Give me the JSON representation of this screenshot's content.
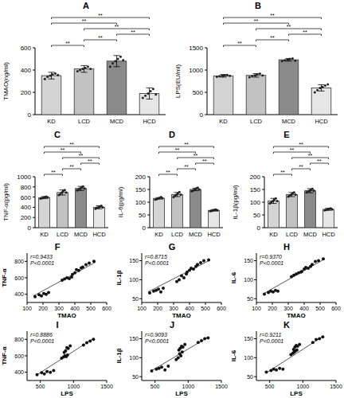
{
  "chart_data": [
    {
      "type": "bar",
      "title": "A",
      "y_label": "TMAO(ng/ml)",
      "categories": [
        "KD",
        "LCD",
        "MCD",
        "HCD"
      ],
      "values": [
        350,
        410,
        480,
        190
      ],
      "errors": [
        30,
        30,
        50,
        50
      ],
      "points": [
        [
          320,
          340,
          350,
          360,
          370,
          355
        ],
        [
          390,
          400,
          410,
          420,
          430,
          410
        ],
        [
          430,
          460,
          480,
          500,
          520,
          490
        ],
        [
          150,
          170,
          190,
          210,
          230,
          180
        ]
      ],
      "colors": [
        "#d4d4d4",
        "#c2c2c2",
        "#8a8a8a",
        "#e6e6e6"
      ],
      "ylim": [
        0,
        600
      ],
      "yticks": [
        0,
        200,
        400,
        600
      ],
      "comparisons": [
        {
          "groups": [
            0,
            1
          ],
          "label": "**"
        },
        {
          "groups": [
            1,
            2
          ],
          "label": "**"
        },
        {
          "groups": [
            2,
            3
          ],
          "label": "**"
        },
        {
          "groups": [
            1,
            3
          ],
          "label": "**"
        },
        {
          "groups": [
            0,
            2
          ],
          "label": "**"
        },
        {
          "groups": [
            0,
            3
          ],
          "label": "**"
        }
      ]
    },
    {
      "type": "bar",
      "title": "B",
      "y_label": "LPS(EU/ml)",
      "categories": [
        "KD",
        "LCD",
        "MCD",
        "HCD"
      ],
      "values": [
        870,
        880,
        1230,
        600
      ],
      "errors": [
        30,
        40,
        30,
        70
      ],
      "points": [
        [
          850,
          860,
          870,
          880,
          890,
          870
        ],
        [
          840,
          860,
          880,
          900,
          920,
          880
        ],
        [
          1200,
          1220,
          1230,
          1250,
          1260,
          1210
        ],
        [
          500,
          550,
          600,
          620,
          650,
          680
        ]
      ],
      "colors": [
        "#d4d4d4",
        "#c2c2c2",
        "#8a8a8a",
        "#e6e6e6"
      ],
      "ylim": [
        0,
        1500
      ],
      "yticks": [
        0,
        500,
        1000,
        1500
      ],
      "comparisons": [
        {
          "groups": [
            0,
            1
          ],
          "label": "**"
        },
        {
          "groups": [
            1,
            2
          ],
          "label": "**"
        },
        {
          "groups": [
            2,
            3
          ],
          "label": "**"
        },
        {
          "groups": [
            1,
            3
          ],
          "label": "**"
        },
        {
          "groups": [
            0,
            2
          ],
          "label": "**"
        },
        {
          "groups": [
            0,
            3
          ],
          "label": "**"
        }
      ]
    },
    {
      "type": "bar",
      "title": "C",
      "y_label": "TNF-α(pg/ml)",
      "categories": [
        "KD",
        "LCD",
        "MCD",
        "HCD"
      ],
      "values": [
        590,
        690,
        770,
        400
      ],
      "errors": [
        20,
        50,
        40,
        30
      ],
      "points": [
        [
          570,
          580,
          590,
          600,
          610,
          595
        ],
        [
          640,
          660,
          690,
          720,
          740,
          690
        ],
        [
          730,
          750,
          770,
          790,
          810,
          770
        ],
        [
          370,
          390,
          400,
          410,
          430,
          400
        ]
      ],
      "colors": [
        "#d4d4d4",
        "#c2c2c2",
        "#8a8a8a",
        "#e6e6e6"
      ],
      "ylim": [
        0,
        1000
      ],
      "yticks": [
        0,
        200,
        400,
        600,
        800,
        1000
      ],
      "comparisons": [
        {
          "groups": [
            0,
            1
          ],
          "label": "**"
        },
        {
          "groups": [
            1,
            2
          ],
          "label": "**"
        },
        {
          "groups": [
            2,
            3
          ],
          "label": "**"
        },
        {
          "groups": [
            1,
            3
          ],
          "label": "**"
        },
        {
          "groups": [
            0,
            2
          ],
          "label": "**"
        },
        {
          "groups": [
            0,
            3
          ],
          "label": "**"
        }
      ]
    },
    {
      "type": "bar",
      "title": "D",
      "y_label": "IL-6(pg/ml)",
      "categories": [
        "KD",
        "LCD",
        "MCD",
        "HCD"
      ],
      "values": [
        115,
        130,
        150,
        68
      ],
      "errors": [
        3,
        8,
        5,
        3
      ],
      "points": [
        [
          110,
          112,
          115,
          117,
          120,
          116
        ],
        [
          120,
          125,
          130,
          135,
          140,
          130
        ],
        [
          143,
          146,
          150,
          154,
          157,
          150
        ],
        [
          65,
          66,
          68,
          70,
          71,
          68
        ]
      ],
      "colors": [
        "#d4d4d4",
        "#c2c2c2",
        "#8a8a8a",
        "#e6e6e6"
      ],
      "ylim": [
        0,
        200
      ],
      "yticks": [
        0,
        50,
        100,
        150,
        200
      ],
      "comparisons": [
        {
          "groups": [
            0,
            1
          ],
          "label": "**"
        },
        {
          "groups": [
            1,
            2
          ],
          "label": "**"
        },
        {
          "groups": [
            2,
            3
          ],
          "label": "**"
        },
        {
          "groups": [
            1,
            3
          ],
          "label": "**"
        },
        {
          "groups": [
            0,
            2
          ],
          "label": "**"
        },
        {
          "groups": [
            0,
            3
          ],
          "label": "**"
        }
      ]
    },
    {
      "type": "bar",
      "title": "E",
      "y_label": "IL-1β(pg/ml)",
      "categories": [
        "KD",
        "LCD",
        "MCD",
        "HCD"
      ],
      "values": [
        105,
        130,
        145,
        72
      ],
      "errors": [
        10,
        8,
        8,
        4
      ],
      "points": [
        [
          95,
          100,
          105,
          110,
          115,
          105
        ],
        [
          122,
          126,
          130,
          134,
          138,
          130
        ],
        [
          138,
          142,
          145,
          148,
          152,
          145
        ],
        [
          68,
          70,
          72,
          74,
          76,
          72
        ]
      ],
      "colors": [
        "#d4d4d4",
        "#c2c2c2",
        "#8a8a8a",
        "#e6e6e6"
      ],
      "ylim": [
        0,
        200
      ],
      "yticks": [
        0,
        50,
        100,
        150,
        200
      ],
      "comparisons": [
        {
          "groups": [
            0,
            1
          ],
          "label": "**"
        },
        {
          "groups": [
            1,
            2
          ],
          "label": "**"
        },
        {
          "groups": [
            2,
            3
          ],
          "label": "**"
        },
        {
          "groups": [
            1,
            3
          ],
          "label": "**"
        },
        {
          "groups": [
            0,
            2
          ],
          "label": "**"
        },
        {
          "groups": [
            0,
            3
          ],
          "label": "**"
        }
      ]
    },
    {
      "type": "scatter",
      "title": "F",
      "x_label": "TMAO",
      "y_label": "TNF-α",
      "annotations": [
        "r=0.9433",
        "P<0.0001"
      ],
      "x": [
        150,
        175,
        190,
        205,
        220,
        235,
        320,
        335,
        350,
        365,
        380,
        385,
        400,
        410,
        425,
        440,
        450,
        470,
        490,
        520
      ],
      "y": [
        370,
        395,
        380,
        410,
        400,
        420,
        570,
        585,
        600,
        590,
        610,
        640,
        660,
        700,
        690,
        720,
        730,
        760,
        780,
        800
      ],
      "fit_line": {
        "x": [
          140,
          530
        ],
        "y": [
          380,
          790
        ]
      },
      "xlim": [
        100,
        600
      ],
      "xticks": [
        100,
        200,
        300,
        400,
        500,
        600
      ],
      "ylim": [
        300,
        900
      ],
      "yticks": [
        400,
        600,
        800
      ]
    },
    {
      "type": "scatter",
      "title": "G",
      "x_label": "TMAO",
      "y_label": "IL-1β",
      "annotations": [
        "r=0.8715",
        "P<0.0001"
      ],
      "x": [
        150,
        175,
        190,
        205,
        220,
        235,
        320,
        335,
        350,
        365,
        380,
        385,
        400,
        410,
        425,
        440,
        450,
        470,
        490,
        520
      ],
      "y": [
        65,
        70,
        72,
        75,
        68,
        78,
        95,
        100,
        110,
        105,
        115,
        120,
        125,
        130,
        128,
        135,
        140,
        145,
        150,
        152
      ],
      "fit_line": {
        "x": [
          140,
          530
        ],
        "y": [
          68,
          152
        ]
      },
      "xlim": [
        100,
        600
      ],
      "xticks": [
        100,
        200,
        300,
        400,
        500,
        600
      ],
      "ylim": [
        40,
        170
      ],
      "yticks": [
        50,
        100,
        150
      ]
    },
    {
      "type": "scatter",
      "title": "H",
      "x_label": "TMAO",
      "y_label": "IL-6",
      "annotations": [
        "r=0.9370",
        "P<0.0001"
      ],
      "x": [
        150,
        175,
        190,
        205,
        220,
        235,
        320,
        335,
        350,
        365,
        380,
        385,
        400,
        410,
        425,
        440,
        450,
        470,
        490,
        520
      ],
      "y": [
        62,
        66,
        70,
        68,
        72,
        70,
        108,
        112,
        115,
        118,
        120,
        122,
        128,
        132,
        130,
        135,
        140,
        148,
        150,
        155
      ],
      "fit_line": {
        "x": [
          140,
          530
        ],
        "y": [
          62,
          155
        ]
      },
      "xlim": [
        100,
        600
      ],
      "xticks": [
        100,
        200,
        300,
        400,
        500,
        600
      ],
      "ylim": [
        40,
        170
      ],
      "yticks": [
        50,
        100,
        150
      ]
    },
    {
      "type": "scatter",
      "title": "I",
      "x_label": "LPS",
      "y_label": "TNF-α",
      "annotations": [
        "r=0.8886",
        "P<0.0001"
      ],
      "x": [
        450,
        520,
        560,
        600,
        650,
        700,
        820,
        850,
        870,
        890,
        910,
        860,
        880,
        900,
        920,
        950,
        1150,
        1200,
        1250,
        1300
      ],
      "y": [
        370,
        395,
        380,
        410,
        400,
        420,
        570,
        585,
        600,
        590,
        610,
        640,
        660,
        700,
        690,
        720,
        730,
        760,
        780,
        800
      ],
      "fit_line": {
        "x": [
          450,
          1300
        ],
        "y": [
          370,
          810
        ]
      },
      "xlim": [
        300,
        1500
      ],
      "xticks": [
        500,
        1000,
        1500
      ],
      "ylim": [
        300,
        900
      ],
      "yticks": [
        400,
        600,
        800
      ]
    },
    {
      "type": "scatter",
      "title": "J",
      "x_label": "LPS",
      "y_label": "IL-1β",
      "annotations": [
        "r=0.9093",
        "P<0.0001"
      ],
      "x": [
        450,
        520,
        560,
        600,
        650,
        700,
        820,
        850,
        870,
        890,
        910,
        860,
        880,
        900,
        920,
        950,
        1150,
        1200,
        1250,
        1300
      ],
      "y": [
        65,
        70,
        72,
        75,
        68,
        78,
        95,
        100,
        110,
        105,
        115,
        120,
        125,
        130,
        128,
        135,
        140,
        145,
        150,
        152
      ],
      "fit_line": {
        "x": [
          450,
          1300
        ],
        "y": [
          66,
          154
        ]
      },
      "xlim": [
        300,
        1500
      ],
      "xticks": [
        500,
        1000,
        1500
      ],
      "ylim": [
        40,
        170
      ],
      "yticks": [
        50,
        100,
        150
      ]
    },
    {
      "type": "scatter",
      "title": "K",
      "x_label": "LPS",
      "y_label": "IL-6",
      "annotations": [
        "r=0.9211",
        "P<0.0001"
      ],
      "x": [
        450,
        520,
        560,
        600,
        650,
        700,
        820,
        850,
        870,
        890,
        910,
        860,
        880,
        900,
        920,
        950,
        1150,
        1200,
        1250,
        1300
      ],
      "y": [
        62,
        66,
        70,
        68,
        72,
        70,
        108,
        112,
        115,
        118,
        120,
        122,
        128,
        132,
        130,
        135,
        140,
        148,
        150,
        155
      ],
      "fit_line": {
        "x": [
          450,
          1300
        ],
        "y": [
          60,
          156
        ]
      },
      "xlim": [
        300,
        1500
      ],
      "xticks": [
        500,
        1000,
        1500
      ],
      "ylim": [
        40,
        170
      ],
      "yticks": [
        50,
        100,
        150
      ]
    }
  ]
}
